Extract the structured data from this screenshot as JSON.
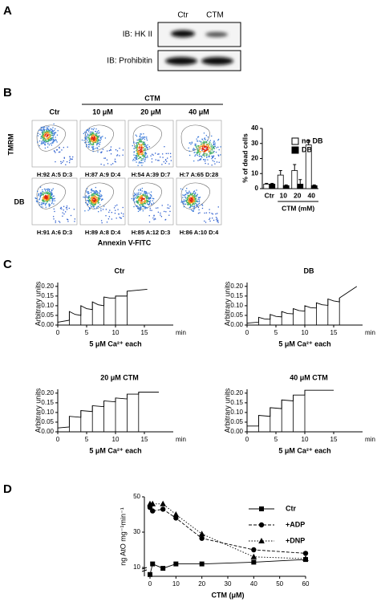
{
  "panel_labels": [
    "A",
    "B",
    "C",
    "D"
  ],
  "panel_a": {
    "lanes": [
      "Ctr",
      "CTM"
    ],
    "blots": [
      "IB:  HK II",
      "IB:  Prohibitin"
    ]
  },
  "panel_b": {
    "group_label": "CTM",
    "columns": [
      "Ctr",
      "10 μM",
      "20 μM",
      "40 μM"
    ],
    "rows": [
      "TMRM",
      "DB"
    ],
    "stats": [
      [
        "H:92 A:5 D:3",
        "H:87 A:9 D:4",
        "H:54 A:39 D:7",
        "H:7 A:65 D:28"
      ],
      [
        "H:91 A:6 D:3",
        "H:89 A:8 D:4",
        "H:85 A:12 D:3",
        "H:86 A:10 D:4"
      ]
    ],
    "x_label": "Annexin V-FITC"
  },
  "chart_data": [
    {
      "type": "bar",
      "ylabel": "% of dead cells",
      "xlabel": "CTM (mM)",
      "categories": [
        "Ctr",
        "10",
        "20",
        "40"
      ],
      "ylim": [
        0,
        40
      ],
      "yticks": [
        0,
        10,
        20,
        30,
        40
      ],
      "legend": "upper left",
      "series": [
        {
          "name": "no DB",
          "color": "#ffffff",
          "values": [
            3,
            9,
            12,
            29
          ],
          "errors": [
            0.5,
            3,
            4,
            3
          ]
        },
        {
          "name": "DB",
          "color": "#000000",
          "values": [
            3,
            2,
            3,
            2
          ],
          "errors": [
            0.5,
            0.5,
            3,
            0.5
          ]
        }
      ]
    },
    {
      "type": "line",
      "title": "Ctr",
      "ylabel": "Arbitrary units",
      "xlabel": "5 μM Ca²⁺ each",
      "x_unit": "min",
      "xlim": [
        0,
        20
      ],
      "xticks": [
        0,
        5,
        10,
        15
      ],
      "ylim": [
        0,
        0.22
      ],
      "yticks": [
        {
          "value": 0,
          "label": "0.00"
        },
        {
          "value": 0.05,
          "label": "0.05"
        },
        {
          "value": 0.1,
          "label": "0.10"
        },
        {
          "value": 0.15,
          "label": "0.15"
        },
        {
          "value": 0.2,
          "label": "0.20"
        }
      ],
      "color": "#000000",
      "x": [
        0,
        2,
        2,
        3,
        4,
        4,
        5,
        6,
        6,
        7,
        8,
        8,
        9,
        10,
        10,
        12,
        12,
        15.5
      ],
      "values": [
        0.015,
        0.025,
        0.07,
        0.055,
        0.05,
        0.1,
        0.085,
        0.08,
        0.12,
        0.105,
        0.1,
        0.145,
        0.14,
        0.14,
        0.15,
        0.15,
        0.175,
        0.185
      ]
    },
    {
      "type": "line",
      "title": "DB",
      "ylabel": "Arbitrary units",
      "xlabel": "5 μM Ca²⁺ each",
      "x_unit": "min",
      "xlim": [
        0,
        20
      ],
      "xticks": [
        0,
        5,
        10,
        15
      ],
      "ylim": [
        0,
        0.22
      ],
      "yticks": [
        {
          "value": 0,
          "label": "0.00"
        },
        {
          "value": 0.05,
          "label": "0.05"
        },
        {
          "value": 0.1,
          "label": "0.10"
        },
        {
          "value": 0.15,
          "label": "0.15"
        },
        {
          "value": 0.2,
          "label": "0.20"
        }
      ],
      "color": "#000000",
      "x": [
        0,
        2,
        2,
        3,
        4,
        4,
        5,
        6,
        6,
        7,
        8,
        8,
        9,
        10,
        10,
        11,
        12,
        12,
        13,
        14,
        14,
        15,
        16,
        16,
        19
      ],
      "values": [
        0.01,
        0.015,
        0.04,
        0.032,
        0.03,
        0.055,
        0.045,
        0.042,
        0.07,
        0.06,
        0.058,
        0.085,
        0.075,
        0.072,
        0.1,
        0.09,
        0.088,
        0.115,
        0.105,
        0.102,
        0.135,
        0.125,
        0.12,
        0.14,
        0.2
      ]
    },
    {
      "type": "line",
      "title": "20 μM CTM",
      "ylabel": "Arbitrary units",
      "xlabel": "5 μM Ca²⁺ each",
      "x_unit": "min",
      "xlim": [
        0,
        20
      ],
      "xticks": [
        0,
        5,
        10,
        15
      ],
      "ylim": [
        0,
        0.22
      ],
      "yticks": [
        {
          "value": 0,
          "label": "0.00"
        },
        {
          "value": 0.05,
          "label": "0.05"
        },
        {
          "value": 0.1,
          "label": "0.10"
        },
        {
          "value": 0.15,
          "label": "0.15"
        },
        {
          "value": 0.2,
          "label": "0.20"
        }
      ],
      "color": "#000000",
      "x": [
        0,
        2,
        2,
        4,
        4,
        6,
        6,
        8,
        8,
        10,
        10,
        12,
        12,
        14,
        14,
        17.5
      ],
      "values": [
        0.02,
        0.025,
        0.08,
        0.075,
        0.11,
        0.105,
        0.135,
        0.13,
        0.16,
        0.155,
        0.175,
        0.17,
        0.195,
        0.195,
        0.205,
        0.205
      ]
    },
    {
      "type": "line",
      "title": "40 μM CTM",
      "ylabel": "Arbitrary units",
      "xlabel": "5 μM Ca²⁺ each",
      "x_unit": "min",
      "xlim": [
        0,
        20
      ],
      "xticks": [
        0,
        5,
        10,
        15
      ],
      "ylim": [
        0,
        0.22
      ],
      "yticks": [
        {
          "value": 0,
          "label": "0.00"
        },
        {
          "value": 0.05,
          "label": "0.05"
        },
        {
          "value": 0.1,
          "label": "0.10"
        },
        {
          "value": 0.15,
          "label": "0.15"
        },
        {
          "value": 0.2,
          "label": "0.20"
        }
      ],
      "color": "#000000",
      "x": [
        0,
        2,
        2,
        4,
        4,
        6,
        6,
        8,
        8,
        10,
        10,
        15
      ],
      "values": [
        0.03,
        0.03,
        0.085,
        0.08,
        0.125,
        0.12,
        0.165,
        0.16,
        0.19,
        0.19,
        0.215,
        0.215
      ]
    },
    {
      "type": "line",
      "ylabel": "ng AtO mg⁻¹min⁻¹",
      "xlabel": "CTM (μM)",
      "x": [
        0,
        1,
        5,
        10,
        20,
        40,
        60
      ],
      "xlim": [
        0,
        60
      ],
      "xticks": [
        0,
        10,
        20,
        30,
        40,
        50,
        60
      ],
      "ylim": [
        5,
        50
      ],
      "yticks": [
        10,
        30,
        50
      ],
      "legend": "upper right",
      "series": [
        {
          "name": "Ctr",
          "color": "#000000",
          "marker": "square",
          "dash": "solid",
          "values": [
            6,
            12,
            9.5,
            12,
            12,
            13,
            14.5
          ]
        },
        {
          "name": "+ADP",
          "color": "#000000",
          "marker": "circle",
          "dash": "dashed",
          "values": [
            44,
            42,
            43,
            38,
            26.5,
            20,
            18
          ]
        },
        {
          "name": "+DNP",
          "color": "#000000",
          "marker": "triangle",
          "dash": "dotted",
          "values": [
            46,
            46,
            46,
            40,
            29,
            16,
            15
          ]
        }
      ]
    }
  ]
}
